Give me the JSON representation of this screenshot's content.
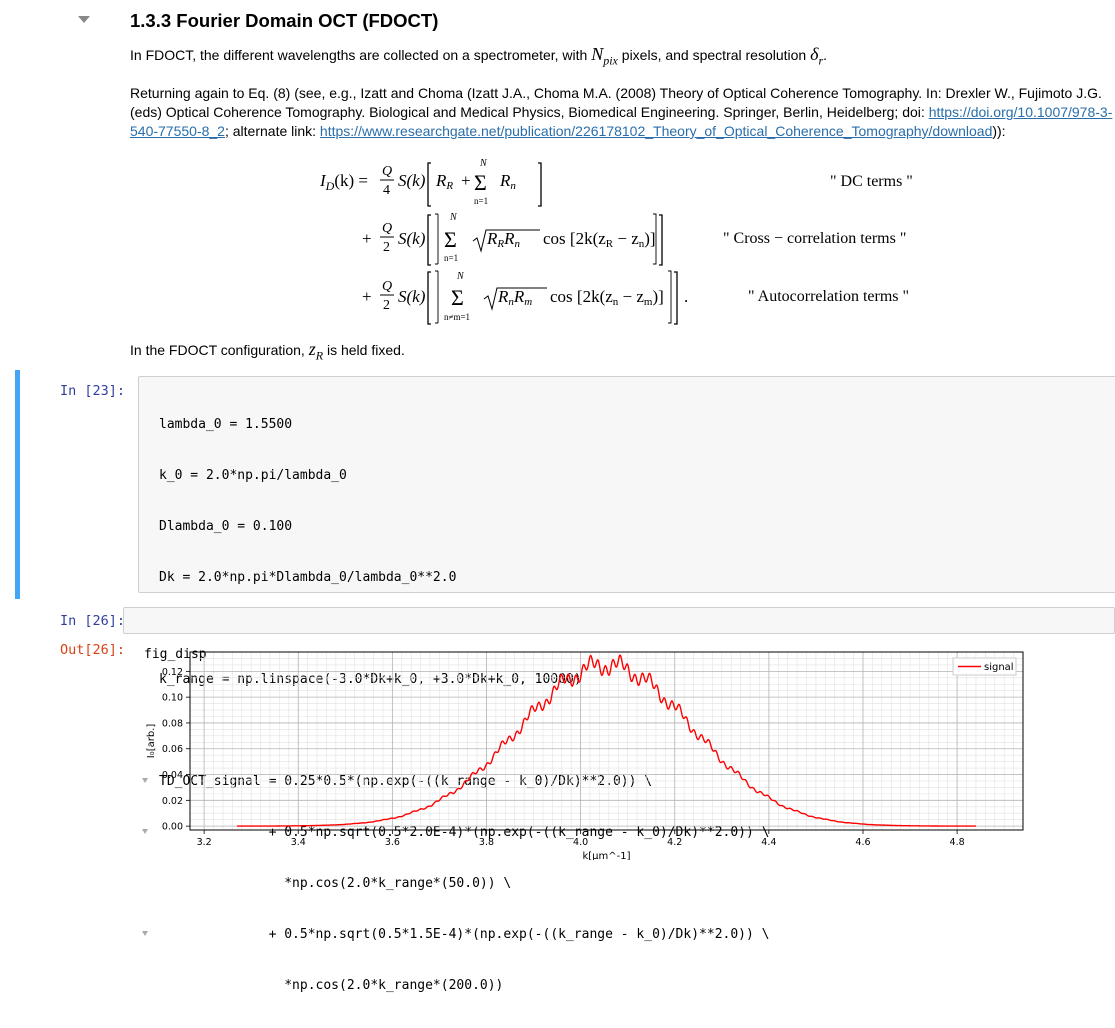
{
  "section": {
    "title": "1.3.3  Fourier Domain OCT (FDOCT)"
  },
  "para1": {
    "before": "In FDOCT, the different wavelengths are collected on a spectrometer, with ",
    "npix": "N",
    "npix_sub": "pix",
    "middle": " pixels, and spectral resolution ",
    "delta": "δ",
    "delta_sub": "r",
    "after": "."
  },
  "para2": {
    "text": "Returning again to Eq. (8) (see, e.g., Izatt and Choma (Izatt J.A., Choma M.A. (2008) Theory of Optical Coherence Tomography. In: Drexler W., Fujimoto J.G. (eds) Optical Coherence Tomography. Biological and Medical Physics, Biomedical Engineering. Springer, Berlin, Heidelberg; doi: ",
    "doi_link": "https://doi.org/10.1007/978-3-540-77550-8_2",
    "mid": "; alternate link: ",
    "alt_link": "https://www.researchgate.net/publication/226178102_Theory_of_Optical_Coherence_Tomography/download",
    "end": ")):"
  },
  "equation": {
    "line1_lhs": "I",
    "line1_lhs_sub": "D",
    "line1_lhs_arg": "(k) =",
    "frac_num": "Q",
    "frac_den1": "4",
    "frac_den2": "2",
    "S_k": "S(k)",
    "R_R": "R",
    "R_R_sub": "R",
    "plus": "+",
    "sum": "Σ",
    "sum_top": "N",
    "sum_bot1": "n=1",
    "sum_bot3": "n≠m=1",
    "R_n": "R",
    "R_n_sub": "n",
    "line2_body": "cos [2k(z",
    "line2_sub_a": "R",
    "line2_mid": " − z",
    "line2_sub_b": "n",
    "line2_end": ")]",
    "line2_sqrt": "R",
    "line2_sqrt_subs": "R",
    "line2_sqrt_b": "R",
    "line2_sqrt_bsub": "n",
    "line3_sqrt_a": "R",
    "line3_sqrt_asub": "n",
    "line3_sqrt_b": "R",
    "line3_sqrt_bsub": "m",
    "line3_body": "cos [2k(z",
    "line3_sub_a": "n",
    "line3_mid": " − z",
    "line3_sub_b": "m",
    "line3_end": ")]",
    "period": ".",
    "label1": "\" DC terms \"",
    "label2": "\" Cross − correlation terms \"",
    "label3": "\" Autocorrelation terms \""
  },
  "para3": {
    "before": "In the FDOCT configuration, ",
    "z": "z",
    "z_sub": "R",
    "after": " is held fixed."
  },
  "cell23": {
    "prompt": "In [23]:",
    "lines": [
      "lambda_0 = 1.5500",
      "k_0 = 2.0*np.pi/lambda_0",
      "Dlambda_0 = 0.100",
      "Dk = 2.0*np.pi*Dlambda_0/lambda_0**2.0",
      "",
      "k_range = np.linspace(-3.0*Dk+k_0, +3.0*Dk+k_0, 10000)",
      "",
      "TD_OCT_signal = 0.25*0.5*(np.exp(-((k_range - k_0)/Dk)**2.0)) \\",
      "              + 0.5*np.sqrt(0.5*2.0E-4)*(np.exp(-((k_range - k_0)/Dk)**2.0)) \\",
      "                *np.cos(2.0*k_range*(50.0)) \\",
      "              + 0.5*np.sqrt(0.5*1.5E-4)*(np.exp(-((k_range - k_0)/Dk)**2.0)) \\",
      "                *np.cos(2.0*k_range*(200.0))"
    ]
  },
  "cell26": {
    "prompt": "In [26]:",
    "code": "fig_disp",
    "out_prompt": "Out[26]:"
  },
  "chart_data": {
    "type": "line",
    "title": "",
    "xlabel": "k[μm^-1]",
    "ylabel": "I₀[arb.]",
    "xlim": [
      3.17,
      4.94
    ],
    "ylim": [
      -0.003,
      0.135
    ],
    "xticks": [
      "3.2",
      "3.4",
      "3.6",
      "3.8",
      "4.0",
      "4.2",
      "4.4",
      "4.6",
      "4.8"
    ],
    "yticks": [
      "0.00",
      "0.02",
      "0.04",
      "0.06",
      "0.08",
      "0.10",
      "0.12"
    ],
    "grid": true,
    "minor_grid": true,
    "legend_position": "top-right",
    "series": [
      {
        "name": "signal",
        "color": "#ff0000",
        "x_range": [
          3.27,
          4.84
        ],
        "center": 4.054,
        "width": 0.2615,
        "amplitude": 0.125,
        "osc1": {
          "amp": 0.005,
          "freq": 100.0
        },
        "osc2": {
          "amp": 0.00433,
          "freq": 400.0
        }
      }
    ]
  }
}
